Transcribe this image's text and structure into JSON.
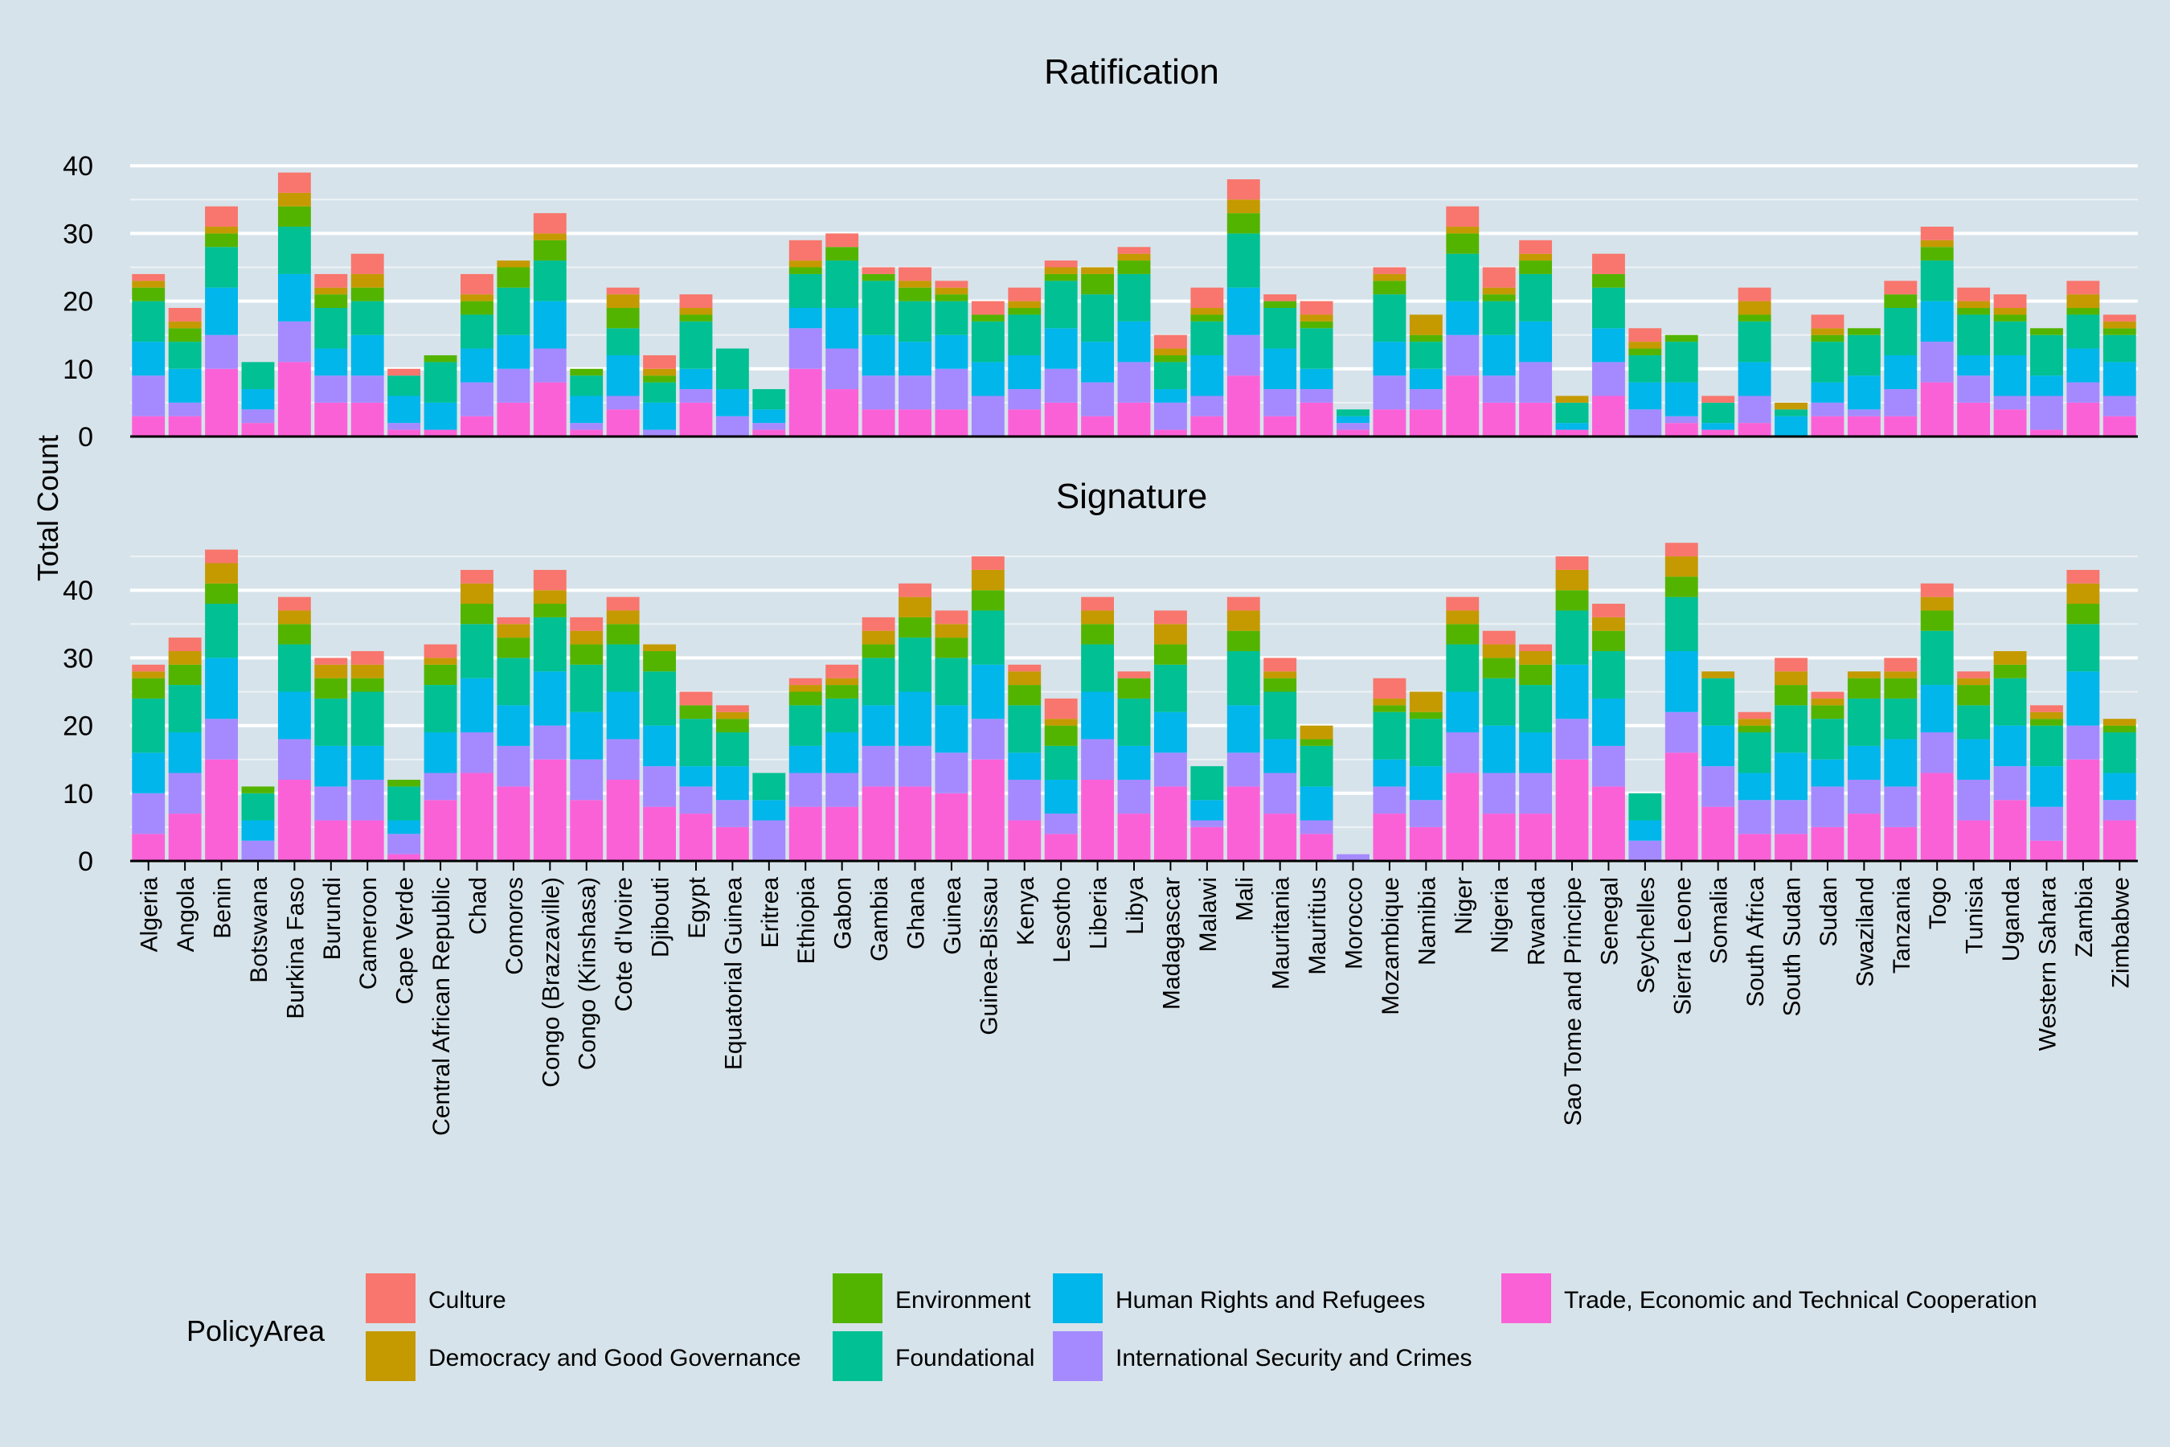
{
  "chart_data": {
    "type": "bar",
    "stacked": true,
    "ylabel": "Total Count",
    "grid": true,
    "legend": {
      "title": "PolicyArea",
      "position": "bottom",
      "entries": [
        "Culture",
        "Democracy and Good Governance",
        "Environment",
        "Foundational",
        "Human Rights and Refugees",
        "International Security and Crimes",
        "Trade, Economic and Technical Cooperation"
      ]
    },
    "colors": {
      "Culture": "#f8766d",
      "Democracy and Good Governance": "#c49a00",
      "Environment": "#53b400",
      "Foundational": "#00c094",
      "Human Rights and Refugees": "#00b6eb",
      "International Security and Crimes": "#a58aff",
      "Trade, Economic and Technical Cooperation": "#fb61d7"
    },
    "categories": [
      "Algeria",
      "Angola",
      "Benin",
      "Botswana",
      "Burkina Faso",
      "Burundi",
      "Cameroon",
      "Cape Verde",
      "Central African Republic",
      "Chad",
      "Comoros",
      "Congo (Brazzaville)",
      "Congo (Kinshasa)",
      "Cote d'Ivoire",
      "Djibouti",
      "Egypt",
      "Equatorial Guinea",
      "Eritrea",
      "Ethiopia",
      "Gabon",
      "Gambia",
      "Ghana",
      "Guinea",
      "Guinea-Bissau",
      "Kenya",
      "Lesotho",
      "Liberia",
      "Libya",
      "Madagascar",
      "Malawi",
      "Mali",
      "Mauritania",
      "Mauritius",
      "Morocco",
      "Mozambique",
      "Namibia",
      "Niger",
      "Nigeria",
      "Rwanda",
      "Sao Tome and Principe",
      "Senegal",
      "Seychelles",
      "Sierra Leone",
      "Somalia",
      "South Africa",
      "South Sudan",
      "Sudan",
      "Swaziland",
      "Tanzania",
      "Togo",
      "Tunisia",
      "Uganda",
      "Western Sahara",
      "Zambia",
      "Zimbabwe"
    ],
    "panels": [
      {
        "title": "Ratification",
        "ylim": [
          0,
          43
        ],
        "yticks": [
          0,
          10,
          20,
          30,
          40
        ],
        "series": [
          {
            "name": "Trade, Economic and Technical Cooperation",
            "values": [
              3,
              3,
              10,
              2,
              11,
              5,
              5,
              1,
              1,
              3,
              5,
              8,
              1,
              4,
              0,
              5,
              0,
              1,
              10,
              7,
              4,
              4,
              4,
              0,
              4,
              5,
              3,
              5,
              1,
              3,
              9,
              3,
              5,
              1,
              4,
              4,
              9,
              5,
              5,
              1,
              6,
              0,
              2,
              1,
              2,
              0,
              3,
              3,
              3,
              8,
              5,
              4,
              1,
              5,
              3
            ]
          },
          {
            "name": "International Security and Crimes",
            "values": [
              6,
              2,
              5,
              2,
              6,
              4,
              4,
              1,
              0,
              5,
              5,
              5,
              1,
              2,
              1,
              2,
              3,
              1,
              6,
              6,
              5,
              5,
              6,
              6,
              3,
              5,
              5,
              6,
              4,
              3,
              6,
              4,
              2,
              1,
              5,
              3,
              6,
              4,
              6,
              0,
              5,
              4,
              1,
              0,
              4,
              0,
              2,
              1,
              4,
              6,
              4,
              2,
              5,
              3,
              3
            ]
          },
          {
            "name": "Human Rights and Refugees",
            "values": [
              5,
              5,
              7,
              3,
              7,
              4,
              6,
              4,
              4,
              5,
              5,
              7,
              4,
              6,
              4,
              3,
              4,
              2,
              3,
              6,
              6,
              5,
              5,
              5,
              5,
              6,
              6,
              6,
              2,
              6,
              7,
              6,
              3,
              1,
              5,
              3,
              5,
              6,
              6,
              1,
              5,
              4,
              5,
              1,
              5,
              3,
              3,
              5,
              5,
              6,
              3,
              6,
              3,
              5,
              5
            ]
          },
          {
            "name": "Foundational",
            "values": [
              6,
              4,
              6,
              4,
              7,
              6,
              5,
              3,
              6,
              5,
              7,
              6,
              3,
              4,
              3,
              7,
              6,
              3,
              5,
              7,
              8,
              6,
              5,
              6,
              6,
              7,
              7,
              7,
              4,
              5,
              8,
              6,
              6,
              1,
              7,
              4,
              7,
              5,
              7,
              3,
              6,
              4,
              6,
              3,
              6,
              1,
              6,
              6,
              7,
              6,
              6,
              5,
              6,
              5,
              4
            ]
          },
          {
            "name": "Environment",
            "values": [
              2,
              2,
              2,
              0,
              3,
              2,
              2,
              0,
              1,
              2,
              3,
              3,
              1,
              3,
              1,
              1,
              0,
              0,
              1,
              2,
              1,
              2,
              1,
              1,
              1,
              1,
              3,
              2,
              1,
              1,
              3,
              1,
              1,
              0,
              2,
              1,
              3,
              1,
              2,
              0,
              2,
              1,
              1,
              0,
              1,
              0,
              1,
              1,
              2,
              2,
              1,
              1,
              1,
              1,
              1
            ]
          },
          {
            "name": "Democracy and Good Governance",
            "values": [
              1,
              1,
              1,
              0,
              2,
              1,
              2,
              0,
              0,
              1,
              1,
              1,
              0,
              2,
              1,
              1,
              0,
              0,
              1,
              0,
              0,
              1,
              1,
              0,
              1,
              1,
              1,
              1,
              1,
              1,
              2,
              0,
              1,
              0,
              1,
              3,
              1,
              1,
              1,
              1,
              0,
              1,
              0,
              0,
              2,
              1,
              1,
              0,
              0,
              1,
              1,
              1,
              0,
              2,
              1
            ]
          },
          {
            "name": "Culture",
            "values": [
              1,
              2,
              3,
              0,
              3,
              2,
              3,
              1,
              0,
              3,
              0,
              3,
              0,
              1,
              2,
              2,
              0,
              0,
              3,
              2,
              1,
              2,
              1,
              2,
              2,
              1,
              0,
              1,
              2,
              3,
              3,
              1,
              2,
              0,
              1,
              0,
              3,
              3,
              2,
              0,
              3,
              2,
              0,
              1,
              2,
              0,
              2,
              0,
              2,
              2,
              2,
              2,
              0,
              2,
              1
            ]
          }
        ]
      },
      {
        "title": "Signature",
        "ylim": [
          0,
          48
        ],
        "yticks": [
          0,
          10,
          20,
          30,
          40
        ],
        "series": [
          {
            "name": "Trade, Economic and Technical Cooperation",
            "values": [
              4,
              7,
              15,
              0,
              12,
              6,
              6,
              1,
              9,
              13,
              11,
              15,
              9,
              12,
              8,
              7,
              5,
              0,
              8,
              8,
              11,
              11,
              10,
              15,
              6,
              4,
              12,
              7,
              11,
              5,
              11,
              7,
              4,
              0,
              7,
              5,
              13,
              7,
              7,
              15,
              11,
              0,
              16,
              8,
              4,
              4,
              5,
              7,
              5,
              13,
              6,
              9,
              3,
              15,
              6
            ]
          },
          {
            "name": "International Security and Crimes",
            "values": [
              6,
              6,
              6,
              3,
              6,
              5,
              6,
              3,
              4,
              6,
              6,
              5,
              6,
              6,
              6,
              4,
              4,
              6,
              5,
              5,
              6,
              6,
              6,
              6,
              6,
              3,
              6,
              5,
              5,
              1,
              5,
              6,
              2,
              1,
              4,
              4,
              6,
              6,
              6,
              6,
              6,
              3,
              6,
              6,
              5,
              5,
              6,
              5,
              6,
              6,
              6,
              5,
              5,
              5,
              3
            ]
          },
          {
            "name": "Human Rights and Refugees",
            "values": [
              6,
              6,
              9,
              3,
              7,
              6,
              5,
              2,
              6,
              8,
              6,
              8,
              7,
              7,
              6,
              3,
              5,
              3,
              4,
              6,
              6,
              8,
              7,
              8,
              4,
              5,
              7,
              5,
              6,
              3,
              7,
              5,
              5,
              0,
              4,
              5,
              6,
              7,
              6,
              8,
              7,
              3,
              9,
              6,
              4,
              7,
              4,
              5,
              7,
              7,
              6,
              6,
              6,
              8,
              4
            ]
          },
          {
            "name": "Foundational",
            "values": [
              8,
              7,
              8,
              4,
              7,
              7,
              8,
              5,
              7,
              8,
              7,
              8,
              7,
              7,
              8,
              7,
              5,
              4,
              6,
              5,
              7,
              8,
              7,
              8,
              7,
              5,
              7,
              7,
              7,
              5,
              8,
              7,
              6,
              0,
              7,
              7,
              7,
              7,
              7,
              8,
              7,
              4,
              8,
              7,
              6,
              7,
              6,
              7,
              6,
              8,
              5,
              7,
              6,
              7,
              6
            ]
          },
          {
            "name": "Environment",
            "values": [
              3,
              3,
              3,
              1,
              3,
              3,
              2,
              1,
              3,
              3,
              3,
              2,
              3,
              3,
              3,
              2,
              2,
              0,
              2,
              2,
              2,
              3,
              3,
              3,
              3,
              3,
              3,
              3,
              3,
              0,
              3,
              2,
              1,
              0,
              1,
              1,
              3,
              3,
              3,
              3,
              3,
              0,
              3,
              0,
              1,
              3,
              2,
              3,
              3,
              3,
              3,
              2,
              1,
              3,
              1
            ]
          },
          {
            "name": "Democracy and Good Governance",
            "values": [
              1,
              2,
              3,
              0,
              2,
              2,
              2,
              0,
              1,
              3,
              2,
              2,
              2,
              2,
              1,
              0,
              1,
              0,
              1,
              1,
              2,
              3,
              2,
              3,
              2,
              1,
              2,
              0,
              3,
              0,
              3,
              1,
              2,
              0,
              1,
              3,
              2,
              2,
              2,
              3,
              2,
              0,
              3,
              1,
              1,
              2,
              1,
              1,
              1,
              2,
              1,
              2,
              1,
              3,
              1
            ]
          },
          {
            "name": "Culture",
            "values": [
              1,
              2,
              2,
              0,
              2,
              1,
              2,
              0,
              2,
              2,
              1,
              3,
              2,
              2,
              0,
              2,
              1,
              0,
              1,
              2,
              2,
              2,
              2,
              2,
              1,
              3,
              2,
              1,
              2,
              0,
              2,
              2,
              0,
              0,
              3,
              0,
              2,
              2,
              1,
              2,
              2,
              0,
              2,
              0,
              1,
              2,
              1,
              0,
              2,
              2,
              1,
              0,
              1,
              2,
              0
            ]
          }
        ]
      }
    ]
  }
}
